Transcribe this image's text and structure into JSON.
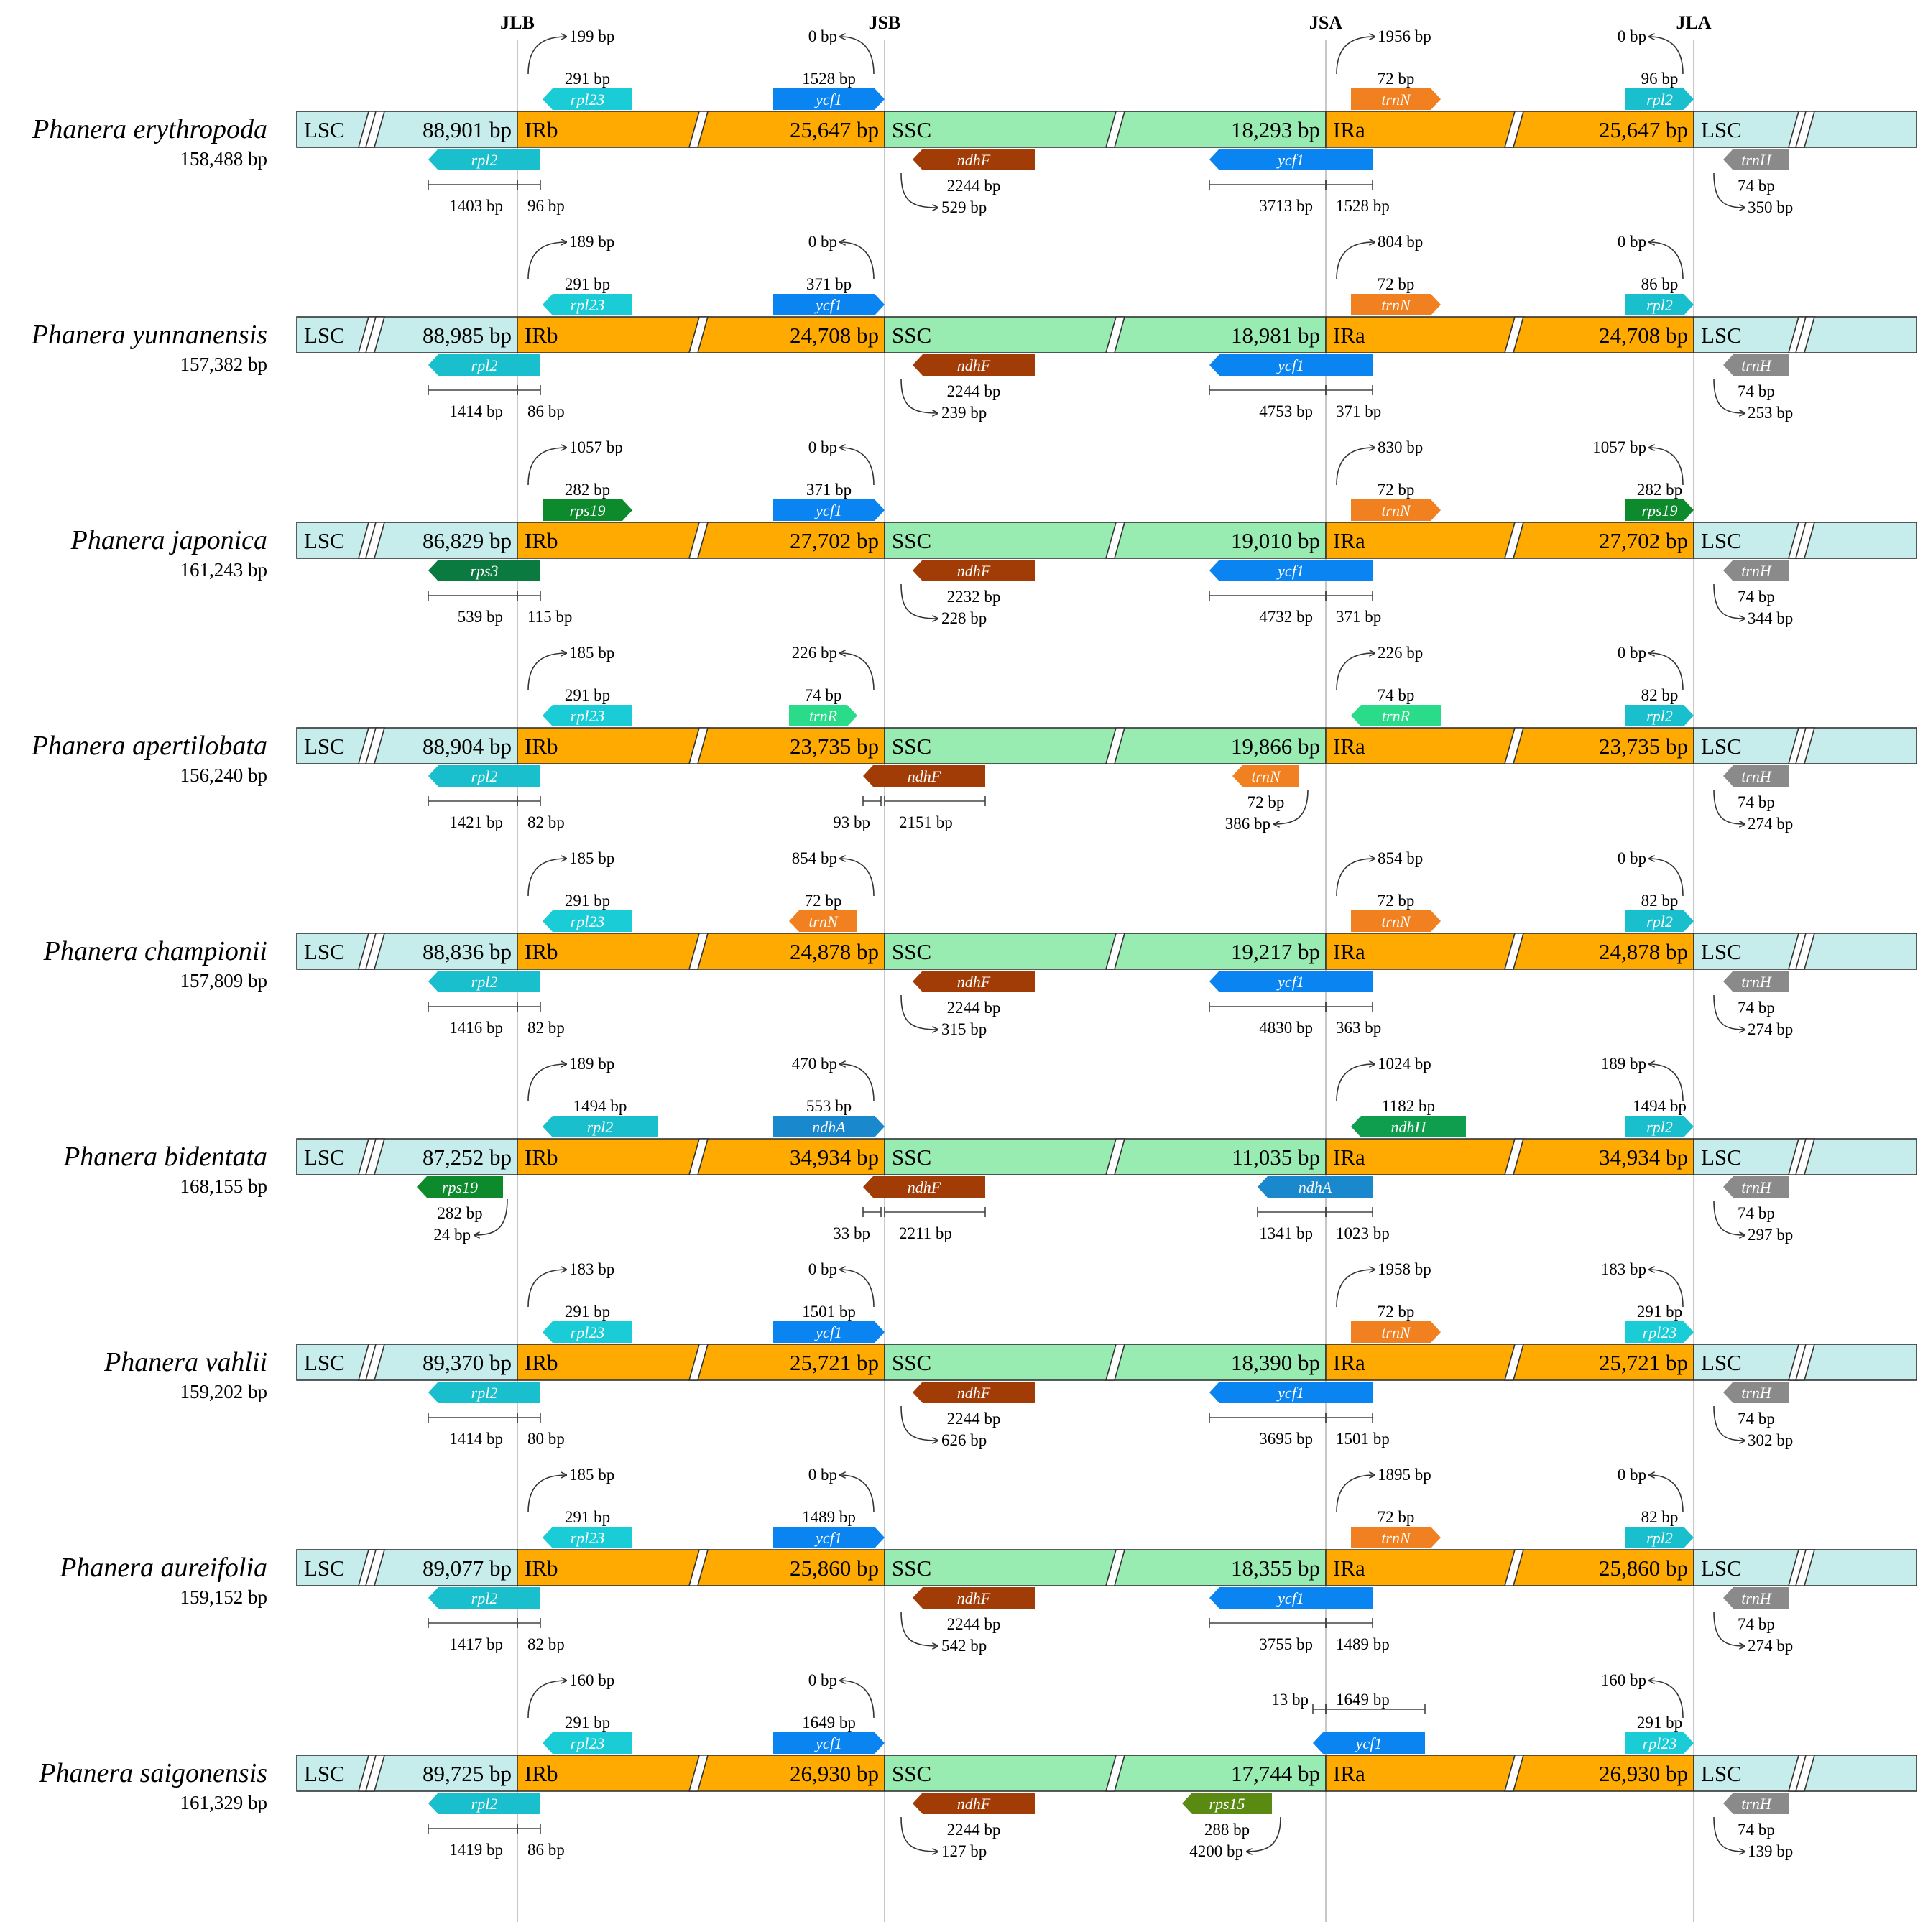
{
  "junction_labels": [
    "JLB",
    "JSB",
    "JSA",
    "JLA"
  ],
  "region_labels": {
    "lsc": "LSC",
    "irb": "IRb",
    "ssc": "SSC",
    "ira": "IRa"
  },
  "colors": {
    "lsc": "#c6ecec",
    "ir": "#ffaa00",
    "ssc": "#98ecb2",
    "rpl2": "#19bfcc",
    "rpl23": "#19ccd6",
    "ycf1": "#0a84f0",
    "trnN": "#f08020",
    "trnH": "#8a8a8a",
    "ndhF": "#a23c06",
    "rps19": "#0c8a2c",
    "rps3": "#0a7a40",
    "trnR": "#2adc8a",
    "ndhA": "#1a88cc",
    "ndhH": "#0f9e4e",
    "rps15": "#5a8a12"
  },
  "species": [
    {
      "name": "Phanera erythropoda",
      "genome": "158,488 bp",
      "lsc": "88,901 bp",
      "irb": "25,647 bp",
      "ssc": "18,293 bp",
      "ira": "25,647 bp",
      "top": [
        {
          "gene": "rpl23",
          "color": "rpl23",
          "dir": "left",
          "len": "291 bp",
          "dist": "199 bp",
          "pos": "jlb",
          "style": "dist-left"
        },
        {
          "gene": "ycf1",
          "color": "ycf1",
          "dir": "right",
          "len": "1528 bp",
          "dist": "0 bp",
          "pos": "jsb",
          "style": "dist-right"
        },
        {
          "gene": "trnN",
          "color": "trnN",
          "dir": "right",
          "len": "72 bp",
          "dist": "1956 bp",
          "pos": "jsa",
          "style": "dist-left"
        },
        {
          "gene": "rpl2",
          "color": "rpl2",
          "dir": "right",
          "len": "96 bp",
          "dist": "0 bp",
          "pos": "jla",
          "style": "dist-right"
        }
      ],
      "bottom": [
        {
          "gene": "rpl2",
          "color": "rpl2",
          "dir": "left",
          "type": "span-jlb",
          "a": "1403 bp",
          "b": "96 bp"
        },
        {
          "gene": "ndhF",
          "color": "ndhF",
          "dir": "left",
          "type": "after-jsb",
          "len": "2244 bp",
          "dist": "529 bp"
        },
        {
          "gene": "ycf1",
          "color": "ycf1",
          "dir": "left",
          "type": "span-jsa",
          "a": "3713 bp",
          "b": "1528 bp"
        },
        {
          "gene": "trnH",
          "color": "trnH",
          "dir": "left",
          "type": "after-jla",
          "len": "74 bp",
          "dist": "350 bp"
        }
      ]
    },
    {
      "name": "Phanera yunnanensis",
      "genome": "157,382 bp",
      "lsc": "88,985 bp",
      "irb": "24,708 bp",
      "ssc": "18,981 bp",
      "ira": "24,708 bp",
      "top": [
        {
          "gene": "rpl23",
          "color": "rpl23",
          "dir": "left",
          "len": "291 bp",
          "dist": "189 bp",
          "pos": "jlb",
          "style": "dist-left"
        },
        {
          "gene": "ycf1",
          "color": "ycf1",
          "dir": "right",
          "len": "371 bp",
          "dist": "0 bp",
          "pos": "jsb",
          "style": "dist-right"
        },
        {
          "gene": "trnN",
          "color": "trnN",
          "dir": "right",
          "len": "72 bp",
          "dist": "804 bp",
          "pos": "jsa",
          "style": "dist-left"
        },
        {
          "gene": "rpl2",
          "color": "rpl2",
          "dir": "right",
          "len": "86 bp",
          "dist": "0 bp",
          "pos": "jla",
          "style": "dist-right"
        }
      ],
      "bottom": [
        {
          "gene": "rpl2",
          "color": "rpl2",
          "dir": "left",
          "type": "span-jlb",
          "a": "1414 bp",
          "b": "86 bp"
        },
        {
          "gene": "ndhF",
          "color": "ndhF",
          "dir": "left",
          "type": "after-jsb",
          "len": "2244 bp",
          "dist": "239 bp"
        },
        {
          "gene": "ycf1",
          "color": "ycf1",
          "dir": "left",
          "type": "span-jsa",
          "a": "4753 bp",
          "b": "371 bp"
        },
        {
          "gene": "trnH",
          "color": "trnH",
          "dir": "left",
          "type": "after-jla",
          "len": "74 bp",
          "dist": "253 bp"
        }
      ]
    },
    {
      "name": "Phanera japonica",
      "genome": "161,243 bp",
      "lsc": "86,829 bp",
      "irb": "27,702 bp",
      "ssc": "19,010 bp",
      "ira": "27,702 bp",
      "top": [
        {
          "gene": "rps19",
          "color": "rps19",
          "dir": "right",
          "len": "282 bp",
          "dist": "1057 bp",
          "pos": "jlb",
          "style": "dist-left"
        },
        {
          "gene": "ycf1",
          "color": "ycf1",
          "dir": "right",
          "len": "371 bp",
          "dist": "0 bp",
          "pos": "jsb",
          "style": "dist-right"
        },
        {
          "gene": "trnN",
          "color": "trnN",
          "dir": "right",
          "len": "72 bp",
          "dist": "830 bp",
          "pos": "jsa",
          "style": "dist-left"
        },
        {
          "gene": "rps19",
          "color": "rps19",
          "dir": "right",
          "len": "282 bp",
          "dist": "1057 bp",
          "pos": "jla",
          "style": "dist-right"
        }
      ],
      "bottom": [
        {
          "gene": "rps3",
          "color": "rps3",
          "dir": "left",
          "type": "span-jlb",
          "a": "539 bp",
          "b": "115 bp"
        },
        {
          "gene": "ndhF",
          "color": "ndhF",
          "dir": "left",
          "type": "after-jsb",
          "len": "2232 bp",
          "dist": "228 bp"
        },
        {
          "gene": "ycf1",
          "color": "ycf1",
          "dir": "left",
          "type": "span-jsa",
          "a": "4732 bp",
          "b": "371 bp"
        },
        {
          "gene": "trnH",
          "color": "trnH",
          "dir": "left",
          "type": "after-jla",
          "len": "74 bp",
          "dist": "344 bp"
        }
      ]
    },
    {
      "name": "Phanera apertilobata",
      "genome": "156,240 bp",
      "lsc": "88,904 bp",
      "irb": "23,735 bp",
      "ssc": "19,866 bp",
      "ira": "23,735 bp",
      "top": [
        {
          "gene": "rpl23",
          "color": "rpl23",
          "dir": "left",
          "len": "291 bp",
          "dist": "185 bp",
          "pos": "jlb",
          "style": "dist-left"
        },
        {
          "gene": "trnR",
          "color": "trnR",
          "dir": "right",
          "len": "74 bp",
          "dist": "226 bp",
          "pos": "jsb",
          "style": "dist-right"
        },
        {
          "gene": "trnR",
          "color": "trnR",
          "dir": "left",
          "len": "74 bp",
          "dist": "226 bp",
          "pos": "jsa",
          "style": "dist-left"
        },
        {
          "gene": "rpl2",
          "color": "rpl2",
          "dir": "right",
          "len": "82 bp",
          "dist": "0 bp",
          "pos": "jla",
          "style": "dist-right"
        }
      ],
      "bottom": [
        {
          "gene": "rpl2",
          "color": "rpl2",
          "dir": "left",
          "type": "span-jlb",
          "a": "1421 bp",
          "b": "82 bp"
        },
        {
          "gene": "ndhF",
          "color": "ndhF",
          "dir": "left",
          "type": "span-jsb",
          "a": "93 bp",
          "b": "2151 bp"
        },
        {
          "gene": "trnN",
          "color": "trnN",
          "dir": "left",
          "type": "before-jsa",
          "len": "72 bp",
          "dist": "386 bp"
        },
        {
          "gene": "trnH",
          "color": "trnH",
          "dir": "left",
          "type": "after-jla",
          "len": "74 bp",
          "dist": "274 bp"
        }
      ]
    },
    {
      "name": "Phanera championii",
      "genome": "157,809 bp",
      "lsc": "88,836 bp",
      "irb": "24,878 bp",
      "ssc": "19,217 bp",
      "ira": "24,878 bp",
      "top": [
        {
          "gene": "rpl23",
          "color": "rpl23",
          "dir": "left",
          "len": "291 bp",
          "dist": "185 bp",
          "pos": "jlb",
          "style": "dist-left"
        },
        {
          "gene": "trnN",
          "color": "trnN",
          "dir": "left",
          "len": "72 bp",
          "dist": "854 bp",
          "pos": "jsb",
          "style": "dist-right"
        },
        {
          "gene": "trnN",
          "color": "trnN",
          "dir": "right",
          "len": "72 bp",
          "dist": "854 bp",
          "pos": "jsa",
          "style": "dist-left"
        },
        {
          "gene": "rpl2",
          "color": "rpl2",
          "dir": "right",
          "len": "82 bp",
          "dist": "0 bp",
          "pos": "jla",
          "style": "dist-right"
        }
      ],
      "bottom": [
        {
          "gene": "rpl2",
          "color": "rpl2",
          "dir": "left",
          "type": "span-jlb",
          "a": "1416 bp",
          "b": "82 bp"
        },
        {
          "gene": "ndhF",
          "color": "ndhF",
          "dir": "left",
          "type": "after-jsb",
          "len": "2244 bp",
          "dist": "315 bp"
        },
        {
          "gene": "ycf1",
          "color": "ycf1",
          "dir": "left",
          "type": "span-jsa",
          "a": "4830 bp",
          "b": "363 bp"
        },
        {
          "gene": "trnH",
          "color": "trnH",
          "dir": "left",
          "type": "after-jla",
          "len": "74 bp",
          "dist": "274 bp"
        }
      ]
    },
    {
      "name": "Phanera bidentata",
      "genome": "168,155 bp",
      "lsc": "87,252 bp",
      "irb": "34,934 bp",
      "ssc": "11,035 bp",
      "ira": "34,934 bp",
      "top": [
        {
          "gene": "rpl2",
          "color": "rpl2",
          "dir": "left",
          "len": "1494 bp",
          "dist": "189 bp",
          "pos": "jlb",
          "style": "dist-left",
          "wide": true
        },
        {
          "gene": "ndhA",
          "color": "ndhA",
          "dir": "right",
          "len": "553 bp",
          "dist": "470 bp",
          "pos": "jsb",
          "style": "dist-right"
        },
        {
          "gene": "ndhH",
          "color": "ndhH",
          "dir": "left",
          "len": "1182 bp",
          "dist": "1024 bp",
          "pos": "jsa",
          "style": "dist-left",
          "wide": true
        },
        {
          "gene": "rpl2",
          "color": "rpl2",
          "dir": "right",
          "len": "1494 bp",
          "dist": "189 bp",
          "pos": "jla",
          "style": "dist-right",
          "wide": true
        }
      ],
      "bottom": [
        {
          "gene": "rps19",
          "color": "rps19",
          "dir": "left",
          "type": "before-jlb",
          "len": "282 bp",
          "dist": "24 bp"
        },
        {
          "gene": "ndhF",
          "color": "ndhF",
          "dir": "left",
          "type": "span-jsb",
          "a": "33 bp",
          "b": "2211 bp"
        },
        {
          "gene": "ndhA",
          "color": "ndhA",
          "dir": "left",
          "type": "span-jsa",
          "a": "1341 bp",
          "b": "1023 bp"
        },
        {
          "gene": "trnH",
          "color": "trnH",
          "dir": "left",
          "type": "after-jla",
          "len": "74 bp",
          "dist": "297 bp"
        }
      ]
    },
    {
      "name": "Phanera vahlii",
      "genome": "159,202 bp",
      "lsc": "89,370 bp",
      "irb": "25,721 bp",
      "ssc": "18,390 bp",
      "ira": "25,721 bp",
      "top": [
        {
          "gene": "rpl23",
          "color": "rpl23",
          "dir": "left",
          "len": "291 bp",
          "dist": "183 bp",
          "pos": "jlb",
          "style": "dist-left"
        },
        {
          "gene": "ycf1",
          "color": "ycf1",
          "dir": "right",
          "len": "1501 bp",
          "dist": "0 bp",
          "pos": "jsb",
          "style": "dist-right"
        },
        {
          "gene": "trnN",
          "color": "trnN",
          "dir": "right",
          "len": "72 bp",
          "dist": "1958 bp",
          "pos": "jsa",
          "style": "dist-left"
        },
        {
          "gene": "rpl23",
          "color": "rpl23",
          "dir": "right",
          "len": "291 bp",
          "dist": "183 bp",
          "pos": "jla",
          "style": "dist-right"
        }
      ],
      "bottom": [
        {
          "gene": "rpl2",
          "color": "rpl2",
          "dir": "left",
          "type": "span-jlb",
          "a": "1414 bp",
          "b": "80 bp"
        },
        {
          "gene": "ndhF",
          "color": "ndhF",
          "dir": "left",
          "type": "after-jsb",
          "len": "2244 bp",
          "dist": "626 bp"
        },
        {
          "gene": "ycf1",
          "color": "ycf1",
          "dir": "left",
          "type": "span-jsa",
          "a": "3695 bp",
          "b": "1501 bp"
        },
        {
          "gene": "trnH",
          "color": "trnH",
          "dir": "left",
          "type": "after-jla",
          "len": "74 bp",
          "dist": "302 bp"
        }
      ]
    },
    {
      "name": "Phanera aureifolia",
      "genome": "159,152 bp",
      "lsc": "89,077 bp",
      "irb": "25,860 bp",
      "ssc": "18,355 bp",
      "ira": "25,860 bp",
      "top": [
        {
          "gene": "rpl23",
          "color": "rpl23",
          "dir": "left",
          "len": "291 bp",
          "dist": "185 bp",
          "pos": "jlb",
          "style": "dist-left"
        },
        {
          "gene": "ycf1",
          "color": "ycf1",
          "dir": "right",
          "len": "1489 bp",
          "dist": "0 bp",
          "pos": "jsb",
          "style": "dist-right"
        },
        {
          "gene": "trnN",
          "color": "trnN",
          "dir": "right",
          "len": "72 bp",
          "dist": "1895 bp",
          "pos": "jsa",
          "style": "dist-left"
        },
        {
          "gene": "rpl2",
          "color": "rpl2",
          "dir": "right",
          "len": "82 bp",
          "dist": "0 bp",
          "pos": "jla",
          "style": "dist-right"
        }
      ],
      "bottom": [
        {
          "gene": "rpl2",
          "color": "rpl2",
          "dir": "left",
          "type": "span-jlb",
          "a": "1417 bp",
          "b": "82 bp"
        },
        {
          "gene": "ndhF",
          "color": "ndhF",
          "dir": "left",
          "type": "after-jsb",
          "len": "2244 bp",
          "dist": "542 bp"
        },
        {
          "gene": "ycf1",
          "color": "ycf1",
          "dir": "left",
          "type": "span-jsa",
          "a": "3755 bp",
          "b": "1489 bp"
        },
        {
          "gene": "trnH",
          "color": "trnH",
          "dir": "left",
          "type": "after-jla",
          "len": "74 bp",
          "dist": "274 bp"
        }
      ]
    },
    {
      "name": "Phanera saigonensis",
      "genome": "161,329 bp",
      "lsc": "89,725 bp",
      "irb": "26,930 bp",
      "ssc": "17,744 bp",
      "ira": "26,930 bp",
      "top": [
        {
          "gene": "rpl23",
          "color": "rpl23",
          "dir": "left",
          "len": "291 bp",
          "dist": "160 bp",
          "pos": "jlb",
          "style": "dist-left"
        },
        {
          "gene": "ycf1",
          "color": "ycf1",
          "dir": "right",
          "len": "1649 bp",
          "dist": "0 bp",
          "pos": "jsb",
          "style": "dist-right"
        },
        {
          "gene": "ycf1",
          "color": "ycf1",
          "dir": "left",
          "a": "13 bp",
          "b": "1649 bp",
          "pos": "jsa",
          "style": "span"
        },
        {
          "gene": "rpl23",
          "color": "rpl23",
          "dir": "right",
          "len": "291 bp",
          "dist": "160 bp",
          "pos": "jla",
          "style": "dist-right"
        }
      ],
      "bottom": [
        {
          "gene": "rpl2",
          "color": "rpl2",
          "dir": "left",
          "type": "span-jlb",
          "a": "1419 bp",
          "b": "86 bp"
        },
        {
          "gene": "ndhF",
          "color": "ndhF",
          "dir": "left",
          "type": "after-jsb",
          "len": "2244 bp",
          "dist": "127 bp"
        },
        {
          "gene": "rps15",
          "color": "rps15",
          "dir": "left",
          "type": "before-jsa",
          "len": "288 bp",
          "dist": "4200 bp"
        },
        {
          "gene": "trnH",
          "color": "trnH",
          "dir": "left",
          "type": "after-jla",
          "len": "74 bp",
          "dist": "139 bp"
        }
      ]
    }
  ]
}
